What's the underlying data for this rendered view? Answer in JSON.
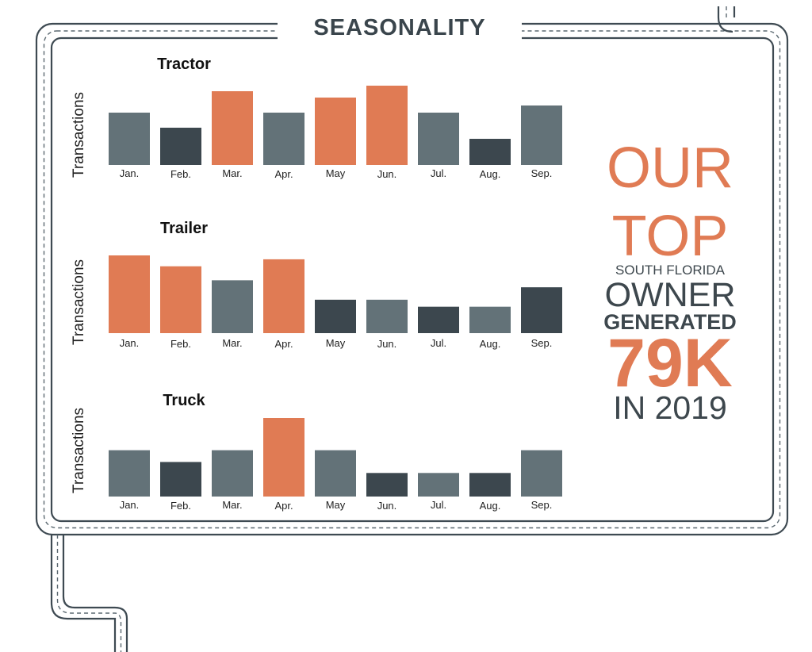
{
  "header": {
    "title": "SEASONALITY"
  },
  "colors": {
    "orange": "#E07B54",
    "slate": "#637278",
    "dark": "#3C474E"
  },
  "chart_data": [
    {
      "type": "bar",
      "title": "Tractor",
      "ylabel": "Transactions",
      "categories": [
        "Jan.",
        "Feb.",
        "Mar.",
        "Apr.",
        "May",
        "Jun.",
        "Jul.",
        "Aug.",
        "Sep."
      ],
      "values": [
        6.6,
        4.7,
        9.3,
        6.6,
        8.5,
        10.0,
        6.6,
        3.3,
        7.5
      ],
      "bar_colors": [
        "slate",
        "dark",
        "orange",
        "slate",
        "orange",
        "orange",
        "slate",
        "dark",
        "slate"
      ],
      "ylim": [
        0,
        10
      ]
    },
    {
      "type": "bar",
      "title": "Trailer",
      "ylabel": "Transactions",
      "categories": [
        "Jan.",
        "Feb.",
        "Mar.",
        "Apr.",
        "May",
        "Jun.",
        "Jul.",
        "Aug.",
        "Sep."
      ],
      "values": [
        10.0,
        8.6,
        6.8,
        9.5,
        4.3,
        4.3,
        3.4,
        3.4,
        5.9
      ],
      "bar_colors": [
        "orange",
        "orange",
        "slate",
        "orange",
        "dark",
        "slate",
        "dark",
        "slate",
        "dark"
      ],
      "ylim": [
        0,
        10
      ]
    },
    {
      "type": "bar",
      "title": "Truck",
      "ylabel": "Transactions",
      "categories": [
        "Jan.",
        "Feb.",
        "Mar.",
        "Apr.",
        "May",
        "Jun.",
        "Jul.",
        "Aug.",
        "Sep."
      ],
      "values": [
        5.9,
        4.4,
        5.9,
        10.0,
        5.9,
        3.0,
        3.0,
        3.0,
        5.9
      ],
      "bar_colors": [
        "slate",
        "dark",
        "slate",
        "orange",
        "slate",
        "dark",
        "slate",
        "dark",
        "slate"
      ],
      "ylim": [
        0,
        10
      ]
    }
  ],
  "callout": {
    "line1": "OUR",
    "line2": "TOP",
    "line3": "SOUTH FLORIDA",
    "line4": "OWNER",
    "line5": "GENERATED",
    "line6": "79K",
    "line7": "IN 2019"
  }
}
